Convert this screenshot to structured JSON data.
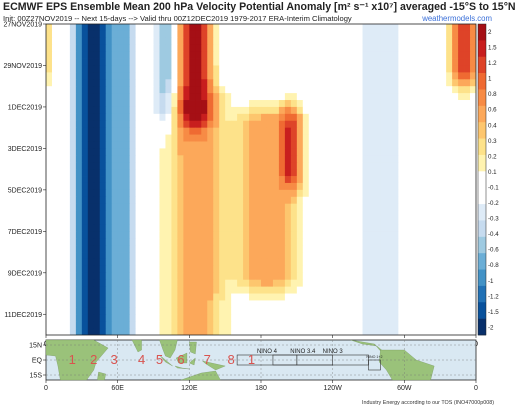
{
  "header": {
    "title": "ECMWF EPS Ensemble Mean 200 hPa Velocity Potential Anomaly [m² s⁻¹ x10⁷] averaged -15°S to 15°N",
    "subtitle": "Init: 00Z27NOV2019 -- Next 15-days --> Valid thru 00Z12DEC2019 1979-2017 ERA-Interim Climatology",
    "source": "weathermodels.com"
  },
  "footer": {
    "credit": "Industry Energy according to our TOS (INO47000p008)"
  },
  "colors": {
    "scale": [
      "#08306b",
      "#08519c",
      "#2171b5",
      "#4292c6",
      "#6baed6",
      "#9ecae1",
      "#c6dbef",
      "#deebf7",
      "#ffffff",
      "#ffffff",
      "#fff3b0",
      "#fde28a",
      "#fdc66e",
      "#fca85a",
      "#f78b45",
      "#ef6a32",
      "#de4328",
      "#c81e1e",
      "#a50f15"
    ],
    "land": "#9ac27a",
    "ocean": "#d9e8f2",
    "region_text": "#d9534f",
    "nino_box": "#333333"
  },
  "chart_data": {
    "type": "heatmap",
    "title": "ECMWF EPS Ensemble Mean 200 hPa Velocity Potential Anomaly [m² s⁻¹ x10⁷] averaged -15°S to 15°N",
    "x_ticks": [
      "0",
      "60E",
      "120E",
      "180",
      "120W",
      "60W",
      "0"
    ],
    "x_range": [
      0,
      360
    ],
    "y_ticks": [
      "27NOV2019",
      "29NOV2019",
      "1DEC2019",
      "3DEC2019",
      "5DEC2019",
      "7DEC2019",
      "9DEC2019",
      "11DEC2019"
    ],
    "y_range_days": [
      0,
      15
    ],
    "colorbar": {
      "labels": [
        "2",
        "1.5",
        "1.2",
        "1",
        "0.8",
        "0.6",
        "0.4",
        "0.3",
        "0.2",
        "0.1",
        "-0.1",
        "-0.2",
        "-0.3",
        "-0.4",
        "-0.6",
        "-0.8",
        "-1",
        "-1.2",
        "-1.5",
        "-2"
      ],
      "levels": [
        2,
        1.5,
        1.2,
        1,
        0.8,
        0.6,
        0.4,
        0.3,
        0.2,
        0.1,
        -0.1,
        -0.2,
        -0.3,
        -0.4,
        -0.6,
        -0.8,
        -1,
        -1.2,
        -1.5,
        -2
      ]
    },
    "features": [
      {
        "lon": 40,
        "day_start": 0,
        "day_end": 15,
        "lon_width": 14,
        "amp": -1.8,
        "note": "persistent negative anomaly near 40E-45E"
      },
      {
        "lon": 65,
        "day_start": 0,
        "day_end": 15,
        "lon_width": 10,
        "amp": -0.6
      },
      {
        "lon": 100,
        "day_start": 0,
        "day_end": 4,
        "lon_width": 10,
        "amp": -0.5
      },
      {
        "lon": 125,
        "day_start": 0,
        "day_end": 4,
        "lon_width": 12,
        "amp": 1.6,
        "note": "propagating positive anomaly"
      },
      {
        "lon": 125,
        "day_start": 4,
        "day_end": 15,
        "lon_width": 22,
        "amp": 0.55
      },
      {
        "lon": 185,
        "day_start": 5,
        "day_end": 12,
        "lon_width": 24,
        "amp": 0.55
      },
      {
        "lon": 205,
        "day_start": 5,
        "day_end": 7,
        "lon_width": 8,
        "amp": 1.0
      },
      {
        "lon": 280,
        "day_start": 0,
        "day_end": 15,
        "lon_width": 30,
        "amp": -0.25
      },
      {
        "lon": 350,
        "day_start": 0,
        "day_end": 2,
        "lon_width": 10,
        "amp": 1.2
      }
    ]
  },
  "map": {
    "lat_ticks": [
      "15N",
      "EQ",
      "15S"
    ],
    "x_ticks": [
      "0",
      "60E",
      "120E",
      "180",
      "120W",
      "60W",
      "0"
    ],
    "mjo_phases": [
      "1",
      "2",
      "3",
      "4",
      "5",
      "6",
      "7",
      "8",
      "1"
    ],
    "nino_boxes": [
      "NINO 4",
      "NINO 3.4",
      "NINO 3",
      "NINO 1+2"
    ]
  }
}
